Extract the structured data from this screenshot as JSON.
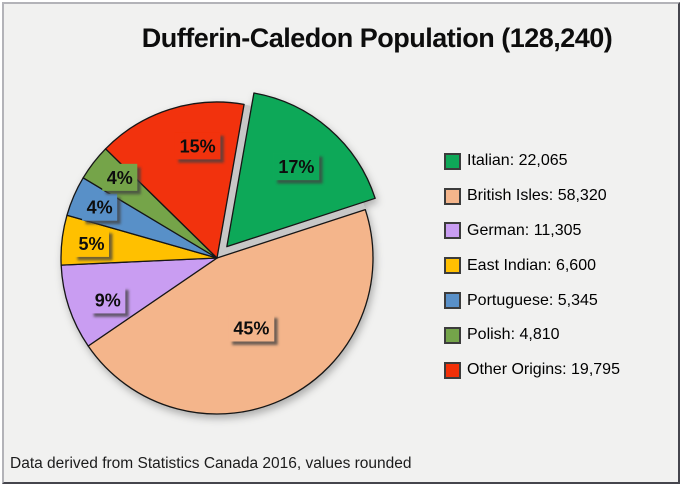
{
  "title": "Dufferin-Caledon Population (128,240)",
  "footnote": "Data derived from Statistics Canada 2016, values rounded",
  "background_color": "#f1f1f0",
  "chart_data": {
    "type": "pie",
    "title": "Dufferin-Caledon Population (128,240)",
    "total": 128240,
    "start_angle_deg": 10,
    "direction": "clockwise",
    "legend_position": "right",
    "source_note": "Data derived from Statistics Canada 2016, values rounded",
    "slices": [
      {
        "name": "Italian",
        "value": 22065,
        "pct_label": "17%",
        "legend_label": "Italian: 22,065",
        "color": "#0fa858",
        "exploded": true,
        "label_r": 0.68,
        "label_angle_offset": 0
      },
      {
        "name": "British Isles",
        "value": 58320,
        "pct_label": "45%",
        "legend_label": "British Isles: 58,320",
        "color": "#f4b58b",
        "exploded": false,
        "label_r": 0.5,
        "label_angle_offset": 0
      },
      {
        "name": "German",
        "value": 11305,
        "pct_label": "9%",
        "legend_label": "German: 11,305",
        "color": "#c99df2",
        "exploded": false,
        "label_r": 0.75,
        "label_angle_offset": -2.5
      },
      {
        "name": "East Indian",
        "value": 6600,
        "pct_label": "5%",
        "legend_label": "East Indian: 6,600",
        "color": "#ffc002",
        "exploded": false,
        "label_r": 0.81,
        "label_angle_offset": 0
      },
      {
        "name": "Portuguese",
        "value": 5345,
        "pct_label": "4%",
        "legend_label": "Portuguese: 5,345",
        "color": "#5990c8",
        "exploded": false,
        "label_r": 0.82,
        "label_angle_offset": 0
      },
      {
        "name": "Polish",
        "value": 4810,
        "pct_label": "4%",
        "legend_label": "Polish: 4,810",
        "color": "#74a44a",
        "exploded": false,
        "label_r": 0.81,
        "label_angle_offset": 2
      },
      {
        "name": "Other Origins",
        "value": 19795,
        "pct_label": "15%",
        "legend_label": "Other Origins: 19,795",
        "color": "#f23008",
        "exploded": false,
        "label_r": 0.73,
        "label_angle_offset": 8
      }
    ]
  }
}
